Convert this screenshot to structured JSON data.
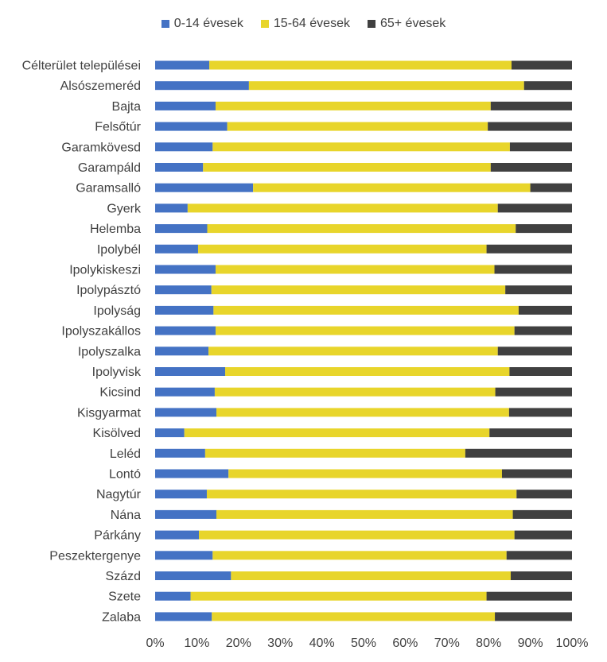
{
  "chart_data": {
    "type": "bar",
    "orientation": "horizontal",
    "stacked": "percent",
    "categories": [
      "Célterület települései",
      "Alsószemeréd",
      "Bajta",
      "Felsőtúr",
      "Garamkövesd",
      "Garampáld",
      "Garamsalló",
      "Gyerk",
      "Helemba",
      "Ipolybél",
      "Ipolykiskeszi",
      "Ipolypásztó",
      "Ipolyság",
      "Ipolyszakállos",
      "Ipolyszalka",
      "Ipolyvisk",
      "Kicsind",
      "Kisgyarmat",
      "Kisölved",
      "Leléd",
      "Lontó",
      "Nagytúr",
      "Nána",
      "Párkány",
      "Peszektergenye",
      "Százd",
      "Szete",
      "Zalaba"
    ],
    "series": [
      {
        "name": "0-14 évesek",
        "color": "#4472C4",
        "values": [
          13.0,
          22.5,
          14.5,
          17.3,
          13.8,
          11.5,
          23.5,
          7.8,
          12.5,
          10.3,
          14.5,
          13.5,
          14.0,
          14.5,
          12.8,
          16.8,
          14.3,
          14.7,
          7.0,
          12.0,
          17.6,
          12.4,
          14.7,
          10.5,
          13.8,
          18.2,
          8.5,
          13.6
        ]
      },
      {
        "name": "15-64 évesek",
        "color": "#E8D52B",
        "values": [
          72.5,
          66.0,
          66.0,
          62.5,
          71.3,
          69.0,
          66.5,
          74.4,
          74.0,
          69.2,
          66.9,
          70.5,
          73.2,
          71.7,
          69.4,
          68.2,
          67.3,
          70.2,
          73.2,
          62.4,
          65.6,
          74.3,
          71.1,
          75.7,
          70.5,
          67.1,
          71.0,
          67.9
        ]
      },
      {
        "name": "65+ évesek",
        "color": "#404040",
        "values": [
          14.5,
          11.5,
          19.5,
          20.2,
          14.9,
          19.5,
          10.0,
          17.8,
          13.5,
          20.5,
          18.6,
          16.0,
          12.8,
          13.8,
          17.8,
          15.0,
          18.4,
          15.1,
          19.8,
          25.6,
          16.8,
          13.3,
          14.2,
          13.8,
          15.7,
          14.7,
          20.5,
          18.5
        ]
      }
    ],
    "xticks": [
      "0%",
      "10%",
      "20%",
      "30%",
      "40%",
      "50%",
      "60%",
      "70%",
      "80%",
      "90%",
      "100%"
    ],
    "xlim": [
      0,
      100
    ],
    "legend_position": "top",
    "grid": false
  }
}
